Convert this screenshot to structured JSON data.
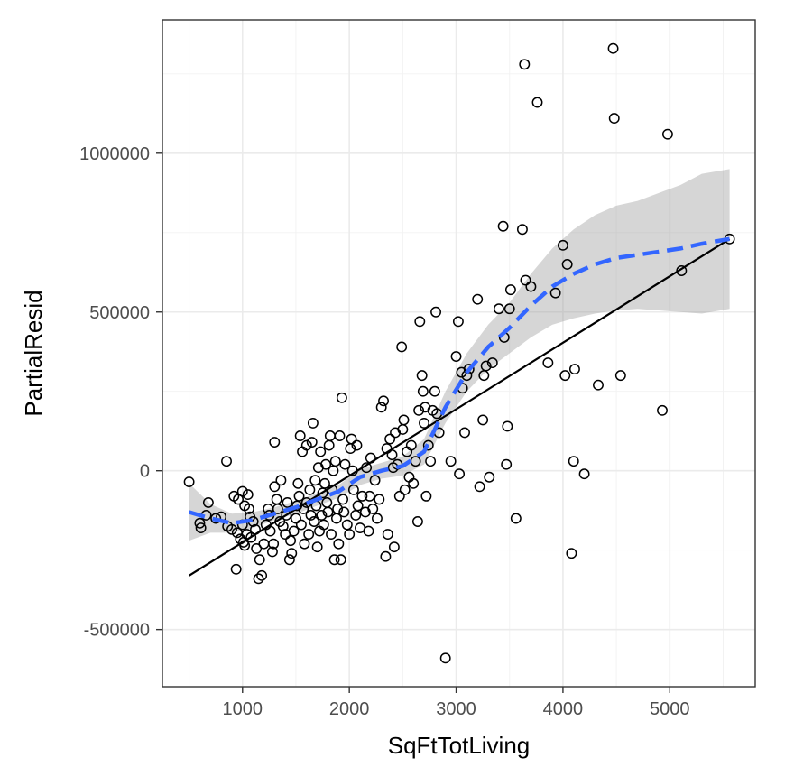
{
  "chart_data": {
    "type": "scatter",
    "title": "",
    "xlabel": "SqFtTotLiving",
    "ylabel": "PartialResid",
    "xlim": [
      250,
      5800
    ],
    "ylim": [
      -680000,
      1420000
    ],
    "x_ticks": [
      1000,
      2000,
      3000,
      4000,
      5000
    ],
    "x_tick_labels": [
      "1000",
      "2000",
      "3000",
      "4000",
      "5000"
    ],
    "x_minor_ticks": [
      500,
      1500,
      2500,
      3500,
      4500,
      5500
    ],
    "y_ticks": [
      -500000,
      0,
      500000,
      1000000
    ],
    "y_tick_labels": [
      "-500000",
      "0",
      "500000",
      "1000000"
    ],
    "y_minor_ticks": [
      -250000,
      250000,
      750000,
      1250000
    ],
    "grid": true,
    "colors": {
      "points": "#000000",
      "fit_line": "#000000",
      "smooth_line": "#3366ff",
      "ci_band": "#999999"
    },
    "series": [
      {
        "type": "scatter",
        "points": [
          [
            500,
            -35000
          ],
          [
            600,
            -165000
          ],
          [
            610,
            -180000
          ],
          [
            660,
            -140000
          ],
          [
            680,
            -100000
          ],
          [
            750,
            -150000
          ],
          [
            800,
            -145000
          ],
          [
            850,
            30000
          ],
          [
            860,
            -175000
          ],
          [
            900,
            -185000
          ],
          [
            920,
            -80000
          ],
          [
            940,
            -310000
          ],
          [
            950,
            -195000
          ],
          [
            960,
            -90000
          ],
          [
            980,
            -215000
          ],
          [
            1000,
            -65000
          ],
          [
            1000,
            -170000
          ],
          [
            1010,
            -225000
          ],
          [
            1020,
            -110000
          ],
          [
            1020,
            -235000
          ],
          [
            1040,
            -200000
          ],
          [
            1050,
            -75000
          ],
          [
            1060,
            -120000
          ],
          [
            1070,
            -145000
          ],
          [
            1080,
            -210000
          ],
          [
            1100,
            -160000
          ],
          [
            1120,
            -185000
          ],
          [
            1130,
            -245000
          ],
          [
            1150,
            -340000
          ],
          [
            1160,
            -280000
          ],
          [
            1180,
            -330000
          ],
          [
            1200,
            -230000
          ],
          [
            1220,
            -170000
          ],
          [
            1240,
            -120000
          ],
          [
            1250,
            -140000
          ],
          [
            1260,
            -190000
          ],
          [
            1280,
            -255000
          ],
          [
            1290,
            -230000
          ],
          [
            1300,
            90000
          ],
          [
            1300,
            -50000
          ],
          [
            1320,
            -90000
          ],
          [
            1330,
            -120000
          ],
          [
            1350,
            -160000
          ],
          [
            1360,
            -30000
          ],
          [
            1380,
            -175000
          ],
          [
            1400,
            -200000
          ],
          [
            1410,
            -140000
          ],
          [
            1420,
            -100000
          ],
          [
            1440,
            -280000
          ],
          [
            1450,
            -220000
          ],
          [
            1460,
            -260000
          ],
          [
            1480,
            -190000
          ],
          [
            1500,
            -150000
          ],
          [
            1510,
            -110000
          ],
          [
            1520,
            -40000
          ],
          [
            1530,
            -80000
          ],
          [
            1540,
            110000
          ],
          [
            1550,
            -170000
          ],
          [
            1560,
            60000
          ],
          [
            1570,
            -120000
          ],
          [
            1580,
            -230000
          ],
          [
            1600,
            80000
          ],
          [
            1600,
            -100000
          ],
          [
            1620,
            -200000
          ],
          [
            1630,
            -60000
          ],
          [
            1640,
            -140000
          ],
          [
            1650,
            90000
          ],
          [
            1660,
            150000
          ],
          [
            1670,
            -160000
          ],
          [
            1680,
            -30000
          ],
          [
            1690,
            -110000
          ],
          [
            1700,
            -240000
          ],
          [
            1710,
            10000
          ],
          [
            1720,
            -190000
          ],
          [
            1730,
            60000
          ],
          [
            1740,
            -140000
          ],
          [
            1750,
            -70000
          ],
          [
            1760,
            -170000
          ],
          [
            1770,
            -40000
          ],
          [
            1780,
            20000
          ],
          [
            1790,
            -100000
          ],
          [
            1800,
            -130000
          ],
          [
            1810,
            80000
          ],
          [
            1820,
            110000
          ],
          [
            1830,
            -200000
          ],
          [
            1840,
            -60000
          ],
          [
            1850,
            0
          ],
          [
            1860,
            -280000
          ],
          [
            1870,
            30000
          ],
          [
            1880,
            -150000
          ],
          [
            1890,
            -120000
          ],
          [
            1900,
            -230000
          ],
          [
            1910,
            110000
          ],
          [
            1920,
            -280000
          ],
          [
            1930,
            230000
          ],
          [
            1940,
            -90000
          ],
          [
            1950,
            -130000
          ],
          [
            1960,
            20000
          ],
          [
            1980,
            -170000
          ],
          [
            2000,
            -200000
          ],
          [
            2010,
            70000
          ],
          [
            2020,
            100000
          ],
          [
            2030,
            0
          ],
          [
            2040,
            -60000
          ],
          [
            2060,
            -140000
          ],
          [
            2070,
            80000
          ],
          [
            2080,
            -110000
          ],
          [
            2100,
            -180000
          ],
          [
            2120,
            -80000
          ],
          [
            2150,
            -130000
          ],
          [
            2160,
            10000
          ],
          [
            2180,
            -190000
          ],
          [
            2190,
            -80000
          ],
          [
            2200,
            40000
          ],
          [
            2220,
            -120000
          ],
          [
            2240,
            -30000
          ],
          [
            2260,
            -150000
          ],
          [
            2280,
            -90000
          ],
          [
            2300,
            200000
          ],
          [
            2320,
            220000
          ],
          [
            2340,
            -270000
          ],
          [
            2350,
            70000
          ],
          [
            2360,
            -200000
          ],
          [
            2380,
            100000
          ],
          [
            2400,
            50000
          ],
          [
            2410,
            10000
          ],
          [
            2420,
            -240000
          ],
          [
            2430,
            120000
          ],
          [
            2450,
            20000
          ],
          [
            2470,
            -80000
          ],
          [
            2490,
            390000
          ],
          [
            2500,
            130000
          ],
          [
            2510,
            160000
          ],
          [
            2520,
            -60000
          ],
          [
            2540,
            60000
          ],
          [
            2560,
            -20000
          ],
          [
            2580,
            80000
          ],
          [
            2600,
            -40000
          ],
          [
            2620,
            30000
          ],
          [
            2640,
            -160000
          ],
          [
            2650,
            190000
          ],
          [
            2660,
            470000
          ],
          [
            2680,
            300000
          ],
          [
            2690,
            250000
          ],
          [
            2700,
            150000
          ],
          [
            2710,
            200000
          ],
          [
            2720,
            -80000
          ],
          [
            2740,
            80000
          ],
          [
            2760,
            30000
          ],
          [
            2780,
            190000
          ],
          [
            2800,
            250000
          ],
          [
            2810,
            500000
          ],
          [
            2820,
            180000
          ],
          [
            2840,
            120000
          ],
          [
            2900,
            -590000
          ],
          [
            2950,
            30000
          ],
          [
            3000,
            360000
          ],
          [
            3020,
            470000
          ],
          [
            3030,
            -10000
          ],
          [
            3050,
            310000
          ],
          [
            3060,
            260000
          ],
          [
            3080,
            120000
          ],
          [
            3100,
            300000
          ],
          [
            3120,
            320000
          ],
          [
            3200,
            540000
          ],
          [
            3220,
            -50000
          ],
          [
            3250,
            160000
          ],
          [
            3260,
            300000
          ],
          [
            3280,
            330000
          ],
          [
            3310,
            -20000
          ],
          [
            3340,
            340000
          ],
          [
            3400,
            510000
          ],
          [
            3440,
            770000
          ],
          [
            3450,
            420000
          ],
          [
            3470,
            20000
          ],
          [
            3480,
            140000
          ],
          [
            3500,
            510000
          ],
          [
            3510,
            570000
          ],
          [
            3560,
            -150000
          ],
          [
            3620,
            760000
          ],
          [
            3640,
            1280000
          ],
          [
            3650,
            600000
          ],
          [
            3700,
            580000
          ],
          [
            3760,
            1160000
          ],
          [
            3860,
            340000
          ],
          [
            3930,
            560000
          ],
          [
            4000,
            710000
          ],
          [
            4020,
            300000
          ],
          [
            4040,
            650000
          ],
          [
            4080,
            -260000
          ],
          [
            4100,
            30000
          ],
          [
            4110,
            320000
          ],
          [
            4200,
            -10000
          ],
          [
            4330,
            270000
          ],
          [
            4470,
            1330000
          ],
          [
            4480,
            1110000
          ],
          [
            4540,
            300000
          ],
          [
            4930,
            190000
          ],
          [
            4980,
            1060000
          ],
          [
            5110,
            630000
          ],
          [
            5560,
            730000
          ]
        ]
      },
      {
        "type": "line",
        "style": "solid",
        "points": [
          [
            500,
            -330000
          ],
          [
            5560,
            730000
          ]
        ]
      },
      {
        "type": "line",
        "style": "dashed",
        "smooth": [
          [
            500,
            -130000
          ],
          [
            700,
            -150000
          ],
          [
            900,
            -165000
          ],
          [
            1100,
            -155000
          ],
          [
            1300,
            -135000
          ],
          [
            1500,
            -115000
          ],
          [
            1700,
            -90000
          ],
          [
            1900,
            -65000
          ],
          [
            2100,
            -20000
          ],
          [
            2300,
            0
          ],
          [
            2500,
            15000
          ],
          [
            2700,
            60000
          ],
          [
            2900,
            200000
          ],
          [
            3100,
            310000
          ],
          [
            3300,
            390000
          ],
          [
            3500,
            450000
          ],
          [
            3700,
            520000
          ],
          [
            3900,
            580000
          ],
          [
            4100,
            620000
          ],
          [
            4300,
            650000
          ],
          [
            4500,
            670000
          ],
          [
            4700,
            680000
          ],
          [
            4900,
            690000
          ],
          [
            5100,
            700000
          ],
          [
            5300,
            715000
          ],
          [
            5560,
            730000
          ]
        ],
        "ci_lower": [
          [
            500,
            -220000
          ],
          [
            700,
            -195000
          ],
          [
            900,
            -195000
          ],
          [
            1100,
            -180000
          ],
          [
            1300,
            -155000
          ],
          [
            1500,
            -135000
          ],
          [
            1700,
            -110000
          ],
          [
            1900,
            -85000
          ],
          [
            2100,
            -45000
          ],
          [
            2300,
            -25000
          ],
          [
            2500,
            -15000
          ],
          [
            2700,
            20000
          ],
          [
            2900,
            150000
          ],
          [
            3100,
            250000
          ],
          [
            3300,
            320000
          ],
          [
            3500,
            370000
          ],
          [
            3700,
            420000
          ],
          [
            3900,
            460000
          ],
          [
            4100,
            480000
          ],
          [
            4300,
            495000
          ],
          [
            4500,
            505000
          ],
          [
            4700,
            510000
          ],
          [
            4900,
            505000
          ],
          [
            5100,
            500000
          ],
          [
            5300,
            495000
          ],
          [
            5560,
            510000
          ]
        ],
        "ci_upper": [
          [
            500,
            -40000
          ],
          [
            700,
            -105000
          ],
          [
            900,
            -135000
          ],
          [
            1100,
            -130000
          ],
          [
            1300,
            -115000
          ],
          [
            1500,
            -95000
          ],
          [
            1700,
            -70000
          ],
          [
            1900,
            -45000
          ],
          [
            2100,
            5000
          ],
          [
            2300,
            25000
          ],
          [
            2500,
            45000
          ],
          [
            2700,
            100000
          ],
          [
            2900,
            250000
          ],
          [
            3100,
            370000
          ],
          [
            3300,
            460000
          ],
          [
            3500,
            530000
          ],
          [
            3700,
            620000
          ],
          [
            3900,
            700000
          ],
          [
            4100,
            760000
          ],
          [
            4300,
            805000
          ],
          [
            4500,
            835000
          ],
          [
            4700,
            850000
          ],
          [
            4900,
            875000
          ],
          [
            5100,
            900000
          ],
          [
            5300,
            935000
          ],
          [
            5560,
            950000
          ]
        ]
      }
    ]
  }
}
